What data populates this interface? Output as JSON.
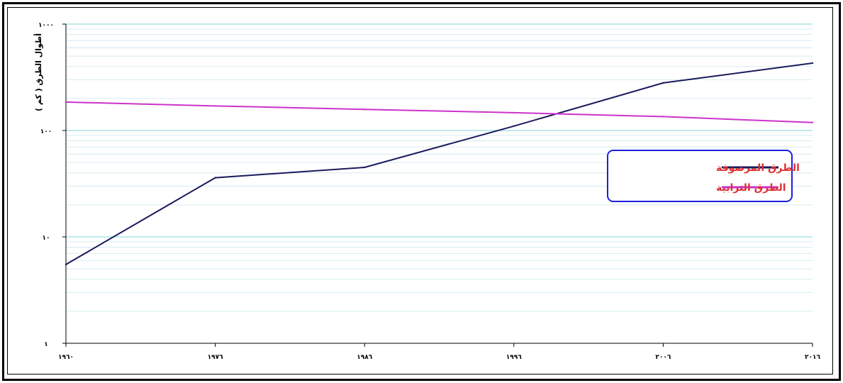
{
  "chart_data": {
    "type": "line",
    "title": "",
    "xlabel": "",
    "ylabel": "أطوال الطرق ( كم )",
    "y_scale": "log",
    "ylim": [
      1,
      1000
    ],
    "y_ticks": [
      {
        "value": 1,
        "label": "١"
      },
      {
        "value": 10,
        "label": "١٠"
      },
      {
        "value": 100,
        "label": "١٠٠"
      },
      {
        "value": 1000,
        "label": "١٠٠٠"
      }
    ],
    "categories": [
      "١٩٦٠",
      "١٩٧٦",
      "١٩٨٦",
      "١٩٩٦",
      "٢٠٠٦",
      "٢٠١٦"
    ],
    "x": [
      1960,
      1976,
      1986,
      1996,
      2006,
      2016
    ],
    "grid": "y-major-and-minor",
    "legend_position": "right",
    "series": [
      {
        "name": "الطرق المرصوفة",
        "color": "#1a1a5c",
        "values": [
          5.5,
          36,
          45,
          110,
          280,
          430
        ]
      },
      {
        "name": "الطرق الترابية",
        "color": "#cc33cc",
        "values": [
          185,
          170,
          158,
          147,
          135,
          119
        ]
      }
    ],
    "legend_text_color": "#e03030",
    "legend_border_color": "#1e1ee0",
    "grid_major_color": "#7fd4d4",
    "grid_minor_color": "#d6ecf2"
  }
}
